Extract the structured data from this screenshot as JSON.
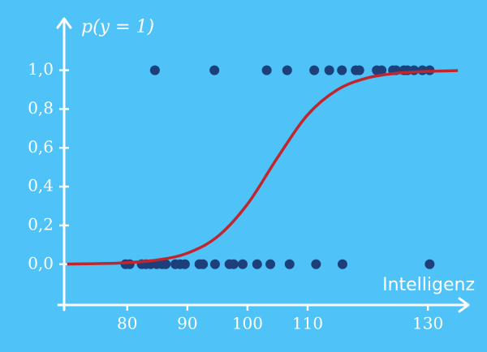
{
  "chart_data": {
    "type": "scatter",
    "y_label": "p(y = 1)",
    "x_label": "Intelligenz",
    "xlim": [
      69.5,
      137
    ],
    "ylim": [
      -0.21,
      1.27
    ],
    "xticks": [
      80,
      90,
      100,
      110,
      130
    ],
    "yticks": [
      {
        "value": 0,
        "label": "0,0"
      },
      {
        "value": 0.2,
        "label": "0,2"
      },
      {
        "value": 0.4,
        "label": "0,4"
      },
      {
        "value": 0.6,
        "label": "0,6"
      },
      {
        "value": 0.8,
        "label": "0,8"
      },
      {
        "value": 1,
        "label": "1,0"
      }
    ],
    "grid": false,
    "series": [
      {
        "color": "#1d3f7a",
        "x": [
          84.6,
          94.5,
          103.2,
          106.6,
          111.1,
          113.6,
          115.7,
          118,
          118.6,
          121.5,
          122.3,
          124.2,
          124.7,
          126,
          126.6,
          127.7,
          129.1,
          130.3,
          79.7,
          80.4,
          82.4,
          83.1,
          83.9,
          84.9,
          85.8,
          86.4,
          88,
          88.8,
          89.6,
          92,
          92.6,
          94.6,
          97,
          97.7,
          99.2,
          101.6,
          103.8,
          107,
          111.4,
          115.8,
          130.3
        ],
        "values": [
          1,
          1,
          1,
          1,
          1,
          1,
          1,
          1,
          1,
          1,
          1,
          1,
          1,
          1,
          1,
          1,
          1,
          1,
          0,
          0,
          0,
          0,
          0,
          0,
          0,
          0,
          0,
          0,
          0,
          0,
          0,
          0,
          0,
          0,
          0,
          0,
          0,
          0,
          0,
          0,
          0
        ]
      },
      {
        "type": "line",
        "color": "#c0262d",
        "x": [
          70,
          75,
          80,
          85,
          90,
          95,
          100,
          105,
          110,
          115,
          120,
          125,
          130,
          135
        ],
        "values": [
          0.0011,
          0.003,
          0.008,
          0.022,
          0.057,
          0.142,
          0.31,
          0.55,
          0.77,
          0.9,
          0.961,
          0.985,
          0.994,
          0.998
        ]
      }
    ]
  }
}
